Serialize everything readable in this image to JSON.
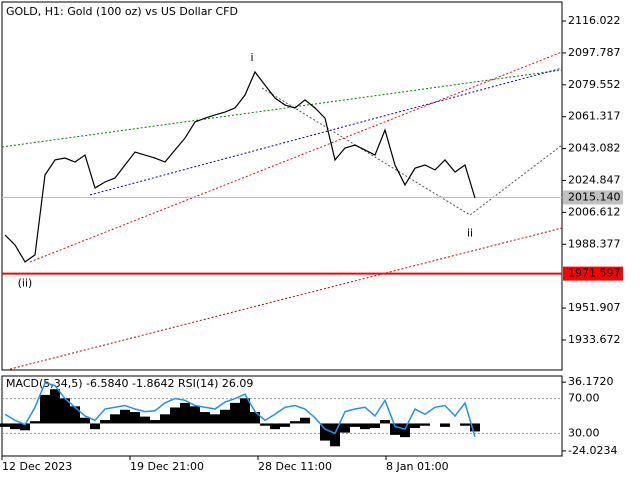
{
  "chart_data": [
    {
      "type": "line",
      "title": "GOLD, H1:  Gold (100 oz) vs US Dollar CFD",
      "x": [
        0,
        1,
        2,
        3,
        4,
        5,
        6,
        7,
        8,
        9,
        10,
        11,
        12,
        13,
        14,
        15,
        16,
        17,
        18,
        19,
        20,
        21,
        22,
        23,
        24,
        25,
        26,
        27,
        28,
        29,
        30,
        31,
        32,
        33,
        34,
        35,
        36,
        37,
        38,
        39,
        40,
        41,
        42,
        43,
        44,
        45,
        46,
        47
      ],
      "series": [
        {
          "color": "#000000",
          "values": [
            1993.7,
            1988.0,
            1978.3,
            1982.3,
            2028.0,
            2036.6,
            2037.7,
            2035.4,
            2039.4,
            2020.6,
            2024.0,
            2026.3,
            2033.7,
            2041.1,
            2039.4,
            2037.7,
            2035.4,
            2042.3,
            2049.1,
            2058.3,
            2060.5,
            2062.3,
            2064.0,
            2066.3,
            2073.7,
            2086.9,
            2079.4,
            2072.0,
            2068.0,
            2066.3,
            2070.9,
            2066.3,
            2060.5,
            2036.6,
            2043.4,
            2045.1,
            2042.3,
            2039.4,
            2053.7,
            2033.7,
            2022.3,
            2031.9,
            2033.7,
            2030.9,
            2036.6,
            2029.7,
            2033.7,
            2014.8
          ]
        }
      ],
      "xlim": [
        -0.3,
        55.7
      ],
      "ylim": [
        1916.5,
        2126.9
      ],
      "xticks": [
        {
          "value": -0.3,
          "label": "12 Dec 2023"
        },
        {
          "value": 12.5,
          "label": "19 Dec 21:00"
        },
        {
          "value": 25.3,
          "label": "28 Dec 11:00"
        },
        {
          "value": 38.1,
          "label": "8 Jan 01:00"
        }
      ],
      "yticks": [
        {
          "value": 2116.022,
          "label": "2116.022"
        },
        {
          "value": 2097.787,
          "label": "2097.787"
        },
        {
          "value": 2079.552,
          "label": "2079.552"
        },
        {
          "value": 2061.317,
          "label": "2061.317"
        },
        {
          "value": 2043.082,
          "label": "2043.082"
        },
        {
          "value": 2024.847,
          "label": "2024.847"
        },
        {
          "value": 2006.612,
          "label": "2006.612"
        },
        {
          "value": 1988.377,
          "label": "1988.377"
        },
        {
          "value": 1951.907,
          "label": "1951.907"
        },
        {
          "value": 1933.672,
          "label": "1933.672"
        }
      ],
      "level": {
        "value": 1971.597,
        "label": "1971.597",
        "color": "#ff0000"
      },
      "last_price": {
        "value": 2015.14,
        "label": "2015.140",
        "color": "#c0c0c0"
      },
      "trendlines": [
        {
          "color": "#008000",
          "x": [
            -0.3,
            55.7
          ],
          "values": [
            2044.0,
            2088.0
          ]
        },
        {
          "color": "#0000cc",
          "x": [
            8.5,
            55.7
          ],
          "values": [
            2016.6,
            2089.1
          ]
        },
        {
          "color": "#ff0000",
          "x": [
            2.5,
            55.7
          ],
          "values": [
            1978.3,
            2098.3
          ]
        },
        {
          "color": "#cc0000",
          "x": [
            0.5,
            55.7
          ],
          "values": [
            1917.0,
            1997.7
          ]
        },
        {
          "color": "#555555",
          "x": [
            25.7,
            46.5,
            55.7
          ],
          "values": [
            2077.7,
            2005.1,
            2045.1
          ]
        }
      ],
      "annotations": [
        {
          "text": "i",
          "x": 24.7,
          "value": 2095.0,
          "color": "#808080"
        },
        {
          "text": "ii",
          "x": 46.5,
          "value": 1994.5,
          "color": "#808080"
        },
        {
          "text": "(ii)",
          "x": 2.0,
          "value": 1966.0,
          "color": "#cc0000"
        }
      ]
    },
    {
      "type": "bar",
      "title": "MACD(5,34,5) -6.5840 -1.8642 RSI(14) 26.09",
      "x": [
        0,
        1,
        2,
        3,
        4,
        5,
        6,
        7,
        8,
        9,
        10,
        11,
        12,
        13,
        14,
        15,
        16,
        17,
        18,
        19,
        20,
        21,
        22,
        23,
        24,
        25,
        26,
        27,
        28,
        29,
        30,
        31,
        32,
        33,
        34,
        35,
        36,
        37,
        38,
        39,
        40,
        41,
        42,
        43,
        44,
        45,
        46,
        47
      ],
      "xlim": [
        -0.3,
        55.7
      ],
      "ylim": [
        -28.5,
        41.56
      ],
      "y2lim": [
        4.1,
        95.9
      ],
      "yticks": [
        {
          "value": 36.172,
          "label": "36.1720"
        },
        {
          "value": -24.0234,
          "label": "-24.0234"
        }
      ],
      "y2ticks": [
        {
          "value": 70,
          "label": "70.00"
        },
        {
          "value": 30,
          "label": "30.00"
        }
      ],
      "series": [
        {
          "type": "bar",
          "color": "#000000",
          "values": [
            -3,
            -5,
            -6,
            2,
            25,
            30,
            22,
            15,
            5,
            -5,
            3,
            8,
            12,
            10,
            6,
            3,
            8,
            14,
            18,
            15,
            10,
            8,
            12,
            18,
            22,
            10,
            -2,
            -5,
            -3,
            2,
            5,
            0,
            -15,
            -20,
            -8,
            -3,
            -5,
            -4,
            3,
            -10,
            -12,
            -4,
            -2,
            0,
            -3,
            0,
            -2,
            -7
          ]
        },
        {
          "type": "line",
          "axis": "y2",
          "color": "#1e90ff",
          "values": [
            52,
            45,
            40,
            60,
            88,
            85,
            70,
            60,
            50,
            45,
            58,
            60,
            62,
            58,
            55,
            56,
            65,
            70,
            68,
            62,
            60,
            58,
            66,
            70,
            75,
            55,
            45,
            52,
            60,
            62,
            58,
            48,
            35,
            30,
            55,
            58,
            60,
            50,
            68,
            38,
            35,
            58,
            52,
            60,
            62,
            50,
            65,
            26.09
          ]
        }
      ]
    }
  ]
}
